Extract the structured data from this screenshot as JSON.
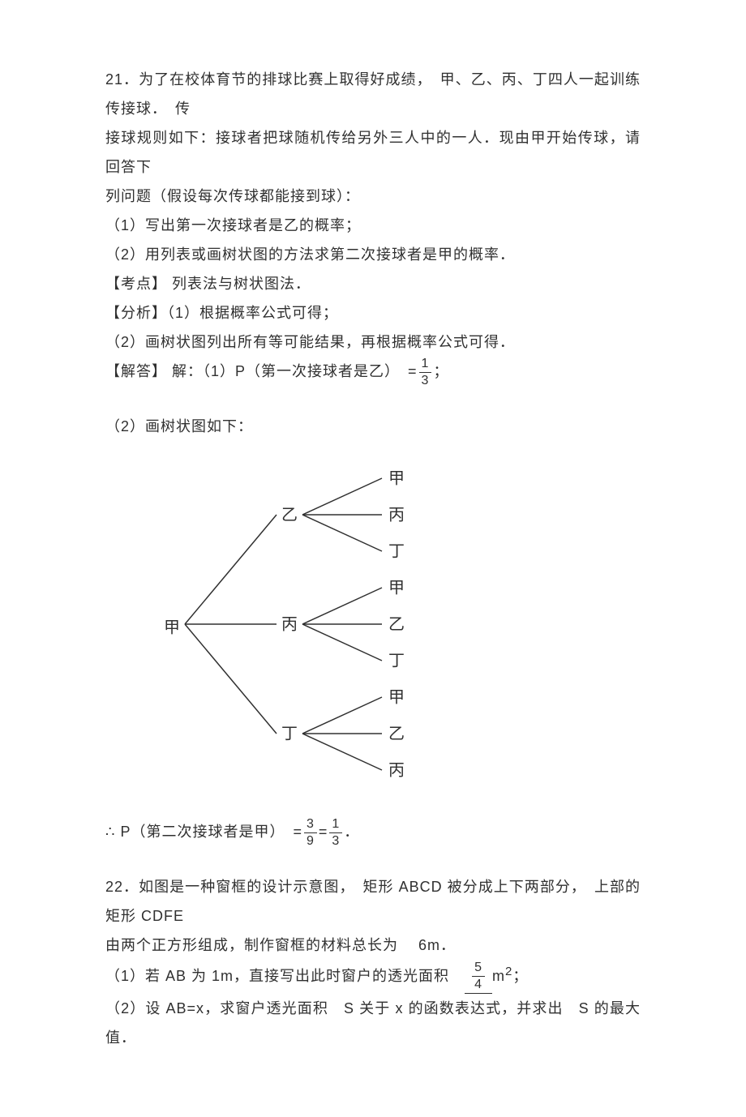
{
  "q21": {
    "body_l1": "21．为了在校体育节的排球比赛上取得好成绩，　甲、乙、丙、丁四人一起训练传接球．　传",
    "body_l2": "接球规则如下：接球者把球随机传给另外三人中的一人．现由甲开始传球，请回答下",
    "body_l3": "列问题（假设每次传球都能接到球）：",
    "sub1": "（1）写出第一次接球者是乙的概率；",
    "sub2": "（2）用列表或画树状图的方法求第二次接球者是甲的概率．",
    "kd_label": "【考点】",
    "kd_text": " 列表法与树状图法．",
    "fx_label": "【分析】",
    "fx_text1": "（1）根据概率公式可得；",
    "fx_text2": "（2）画树状图列出所有等可能结果，再根据概率公式可得．",
    "jd_label": "【解答】",
    "jd_text1_a": " 解：（1）P（第一次接球者是乙）　=",
    "jd_text1_b": "；",
    "frac1": {
      "num": "1",
      "den": "3"
    },
    "sub2_draw": "（2）画树状图如下：",
    "tree": {
      "root": "甲",
      "mids": [
        "乙",
        "丙",
        "丁"
      ],
      "leaves": [
        [
          "甲",
          "丙",
          "丁"
        ],
        [
          "甲",
          "乙",
          "丁"
        ],
        [
          "甲",
          "乙",
          "丙"
        ]
      ],
      "stroke": "#303030"
    },
    "conc_a": "∴ P（第二次接球者是甲）　=",
    "conc_b": "=",
    "conc_c": "．",
    "frac2a": {
      "num": "3",
      "den": "9"
    },
    "frac2b": {
      "num": "1",
      "den": "3"
    }
  },
  "q22": {
    "body_l1": "22．如图是一种窗框的设计示意图，　矩形 ABCD 被分成上下两部分，　上部的矩形 CDFE",
    "body_l2": "由两个正方形组成，制作窗框的材料总长为　 6m．",
    "sub1_a": "（1）若 AB 为 1m，直接写出此时窗户的透光面积　",
    "sub1_b": "m",
    "sub1_c": "；",
    "blank_frac": {
      "num": "5",
      "den": "4"
    },
    "sup2": "2",
    "sub2": "（2）设 AB=x，求窗户透光面积　S 关于 x 的函数表达式，并求出　S 的最大值．"
  }
}
